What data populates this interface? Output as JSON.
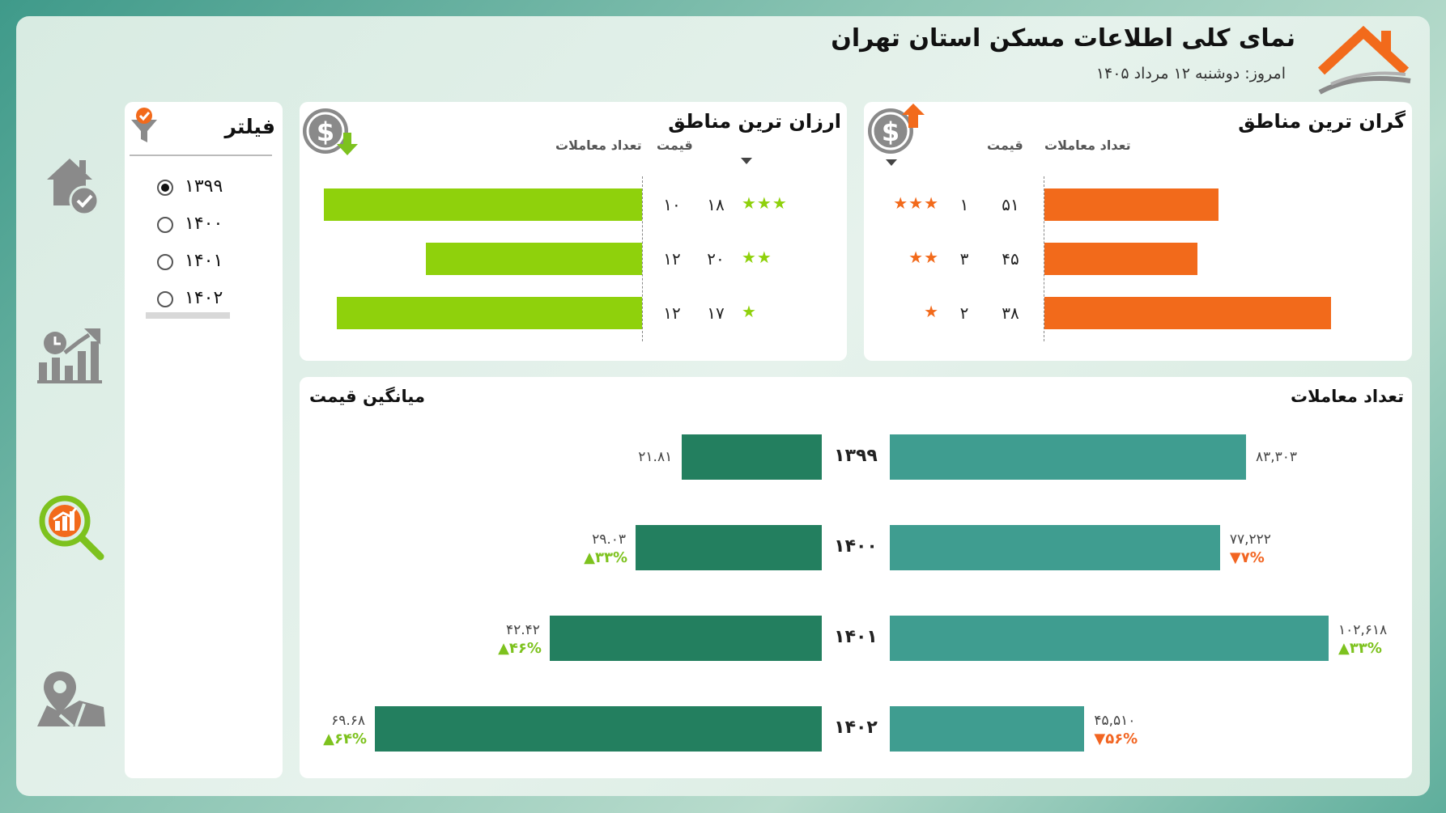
{
  "header": {
    "title": "نمای کلی اطلاعات مسکن استان تهران",
    "date_label": "امروز: دوشنبه ۱۲ مرداد ۱۴۰۵"
  },
  "sidebar": {
    "items": [
      {
        "icon": "house-check-icon"
      },
      {
        "icon": "growth-chart-icon"
      },
      {
        "icon": "analysis-magnifier-icon"
      },
      {
        "icon": "map-pin-icon"
      }
    ]
  },
  "filter": {
    "title": "فیلتر",
    "options": [
      {
        "label": "۱۳۹۹",
        "selected": true
      },
      {
        "label": "۱۴۰۰",
        "selected": false
      },
      {
        "label": "۱۴۰۱",
        "selected": false
      },
      {
        "label": "۱۴۰۲",
        "selected": false
      }
    ]
  },
  "expensive": {
    "title": "گران ترین مناطق",
    "col_price": "قیمت",
    "col_count": "تعداد معاملات",
    "rows": [
      {
        "stars": "★★★",
        "rank": "۱",
        "price": "۵۱",
        "bar_value": 51
      },
      {
        "stars": "★★",
        "rank": "۳",
        "price": "۴۵",
        "bar_value": 45
      },
      {
        "stars": "★",
        "rank": "۲",
        "price": "۳۸",
        "bar_value": 84
      }
    ],
    "color": "#f26a1b"
  },
  "cheap": {
    "title": "ارزان ترین مناطق",
    "col_price": "قیمت",
    "col_count": "تعداد معاملات",
    "rows": [
      {
        "stars": "★★★",
        "rank": "۱۸",
        "price": "۱۰",
        "bar_value": 100
      },
      {
        "stars": "★★",
        "rank": "۲۰",
        "price": "۱۲",
        "bar_value": 68
      },
      {
        "stars": "★",
        "rank": "۱۷",
        "price": "۱۲",
        "bar_value": 96
      }
    ],
    "color": "#8fd10c"
  },
  "bottom": {
    "left_title": "میانگین قیمت",
    "right_title": "تعداد معاملات",
    "rows": [
      {
        "year": "۱۳۹۹",
        "price": "۲۱.۸۱",
        "price_value": 21.81,
        "price_chg": "",
        "price_dir": "",
        "count": "۸۳,۳۰۳",
        "count_value": 83303,
        "count_chg": "",
        "count_dir": ""
      },
      {
        "year": "۱۴۰۰",
        "price": "۲۹.۰۳",
        "price_value": 29.03,
        "price_chg": "▲۳۳%",
        "price_dir": "up",
        "count": "۷۷,۲۲۲",
        "count_value": 77222,
        "count_chg": "▼۷%",
        "count_dir": "down"
      },
      {
        "year": "۱۴۰۱",
        "price": "۴۲.۴۲",
        "price_value": 42.42,
        "price_chg": "▲۴۶%",
        "price_dir": "up",
        "count": "۱۰۲,۶۱۸",
        "count_value": 102618,
        "count_chg": "▲۳۳%",
        "count_dir": "up"
      },
      {
        "year": "۱۴۰۲",
        "price": "۶۹.۶۸",
        "price_value": 69.68,
        "price_chg": "▲۶۴%",
        "price_dir": "up",
        "count": "۴۵,۵۱۰",
        "count_value": 45510,
        "count_chg": "▼۵۶%",
        "count_dir": "down"
      }
    ],
    "price_color": "#237f5f",
    "count_color": "#3f9d90"
  }
}
